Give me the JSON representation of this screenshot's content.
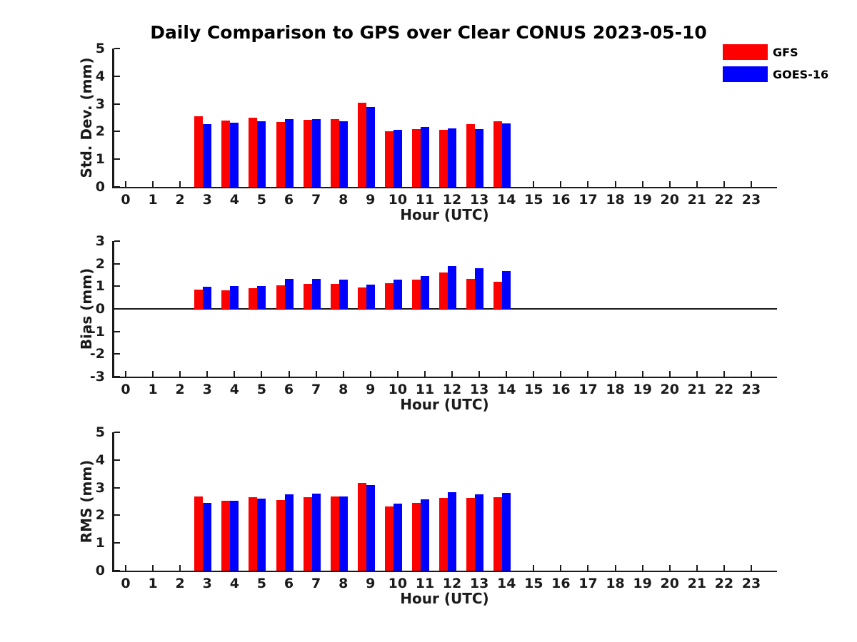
{
  "title": "Daily Comparison to GPS over Clear CONUS 2023-05-10",
  "legend": {
    "items": [
      {
        "label": "GFS",
        "color": "#ff0000"
      },
      {
        "label": "GOES-16",
        "color": "#0000ff"
      }
    ]
  },
  "colors": {
    "gfs": "#ff0000",
    "goes16": "#0000ff",
    "axis": "#1a1a1a"
  },
  "chart_data": [
    {
      "type": "bar",
      "ylabel": "Std. Dev. (mm)",
      "xlabel": "Hour (UTC)",
      "ylim": [
        0,
        5
      ],
      "yticks": [
        0,
        1,
        2,
        3,
        4,
        5
      ],
      "xticks": [
        0,
        1,
        2,
        3,
        4,
        5,
        6,
        7,
        8,
        9,
        10,
        11,
        12,
        13,
        14,
        15,
        16,
        17,
        18,
        19,
        20,
        21,
        22,
        23
      ],
      "bar_hours": [
        3,
        4,
        5,
        6,
        7,
        8,
        9,
        10,
        11,
        12,
        13,
        14
      ],
      "legend_position": "outside-top-right",
      "grid": false,
      "series": [
        {
          "name": "GFS",
          "color": "#ff0000",
          "values": [
            2.55,
            2.4,
            2.49,
            2.34,
            2.42,
            2.45,
            3.03,
            2.0,
            2.09,
            2.06,
            2.28,
            2.38
          ]
        },
        {
          "name": "GOES-16",
          "color": "#0000ff",
          "values": [
            2.28,
            2.32,
            2.38,
            2.44,
            2.44,
            2.36,
            2.88,
            2.05,
            2.17,
            2.11,
            2.09,
            2.29
          ]
        }
      ]
    },
    {
      "type": "bar",
      "ylabel": "Bias (mm)",
      "xlabel": "Hour (UTC)",
      "ylim": [
        -3,
        3
      ],
      "yticks": [
        -3,
        -2,
        -1,
        0,
        1,
        2,
        3
      ],
      "xticks": [
        0,
        1,
        2,
        3,
        4,
        5,
        6,
        7,
        8,
        9,
        10,
        11,
        12,
        13,
        14,
        15,
        16,
        17,
        18,
        19,
        20,
        21,
        22,
        23
      ],
      "bar_hours": [
        3,
        4,
        5,
        6,
        7,
        8,
        9,
        10,
        11,
        12,
        13,
        14
      ],
      "zero_line": true,
      "grid": false,
      "series": [
        {
          "name": "GFS",
          "color": "#ff0000",
          "values": [
            0.84,
            0.82,
            0.92,
            1.05,
            1.09,
            1.1,
            0.95,
            1.13,
            1.28,
            1.62,
            1.32,
            1.2
          ]
        },
        {
          "name": "GOES-16",
          "color": "#0000ff",
          "values": [
            0.96,
            1.01,
            1.02,
            1.32,
            1.33,
            1.29,
            1.06,
            1.3,
            1.44,
            1.88,
            1.79,
            1.66
          ]
        }
      ]
    },
    {
      "type": "bar",
      "ylabel": "RMS (mm)",
      "xlabel": "Hour (UTC)",
      "ylim": [
        0,
        5
      ],
      "yticks": [
        0,
        1,
        2,
        3,
        4,
        5
      ],
      "xticks": [
        0,
        1,
        2,
        3,
        4,
        5,
        6,
        7,
        8,
        9,
        10,
        11,
        12,
        13,
        14,
        15,
        16,
        17,
        18,
        19,
        20,
        21,
        22,
        23
      ],
      "bar_hours": [
        3,
        4,
        5,
        6,
        7,
        8,
        9,
        10,
        11,
        12,
        13,
        14
      ],
      "grid": false,
      "series": [
        {
          "name": "GFS",
          "color": "#ff0000",
          "values": [
            2.69,
            2.53,
            2.65,
            2.56,
            2.66,
            2.68,
            3.16,
            2.32,
            2.46,
            2.64,
            2.63,
            2.66
          ]
        },
        {
          "name": "GOES-16",
          "color": "#0000ff",
          "values": [
            2.46,
            2.53,
            2.6,
            2.76,
            2.78,
            2.68,
            3.08,
            2.41,
            2.59,
            2.84,
            2.75,
            2.81
          ]
        }
      ]
    }
  ]
}
